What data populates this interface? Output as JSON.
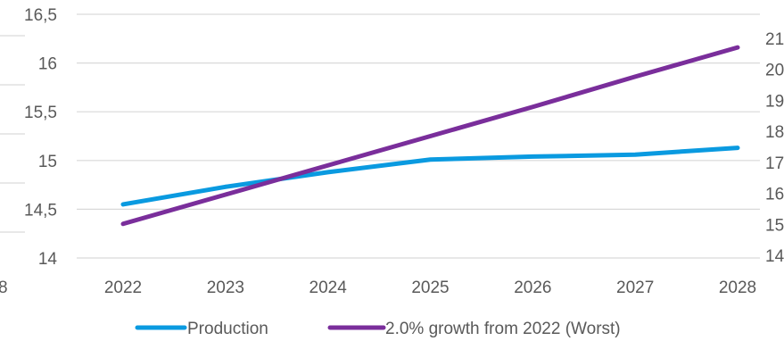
{
  "chart_data": {
    "type": "line",
    "title": "",
    "xlabel": "",
    "ylabel": "",
    "categories": [
      "2022",
      "2023",
      "2024",
      "2025",
      "2026",
      "2027",
      "2028"
    ],
    "y_left": {
      "min": 14,
      "max": 16.5,
      "ticks": [
        "14",
        "14,5",
        "15",
        "15,5",
        "16",
        "16,5"
      ]
    },
    "y_right": {
      "min": 14,
      "max": 21,
      "ticks": [
        "14",
        "15",
        "16",
        "17",
        "18",
        "19",
        "20",
        "21"
      ],
      "visible_partial": true
    },
    "partial_left_labels": [
      "8"
    ],
    "series": [
      {
        "name": "Production",
        "color": "#0a9ae0",
        "values": [
          14.55,
          14.73,
          14.88,
          15.01,
          15.04,
          15.06,
          15.13
        ]
      },
      {
        "name": "2.0% growth from 2022 (Worst)",
        "color": "#7a2e9b",
        "values": [
          14.35,
          14.65,
          14.95,
          15.25,
          15.55,
          15.86,
          16.16
        ]
      }
    ],
    "grid": true,
    "legend_position": "bottom"
  }
}
